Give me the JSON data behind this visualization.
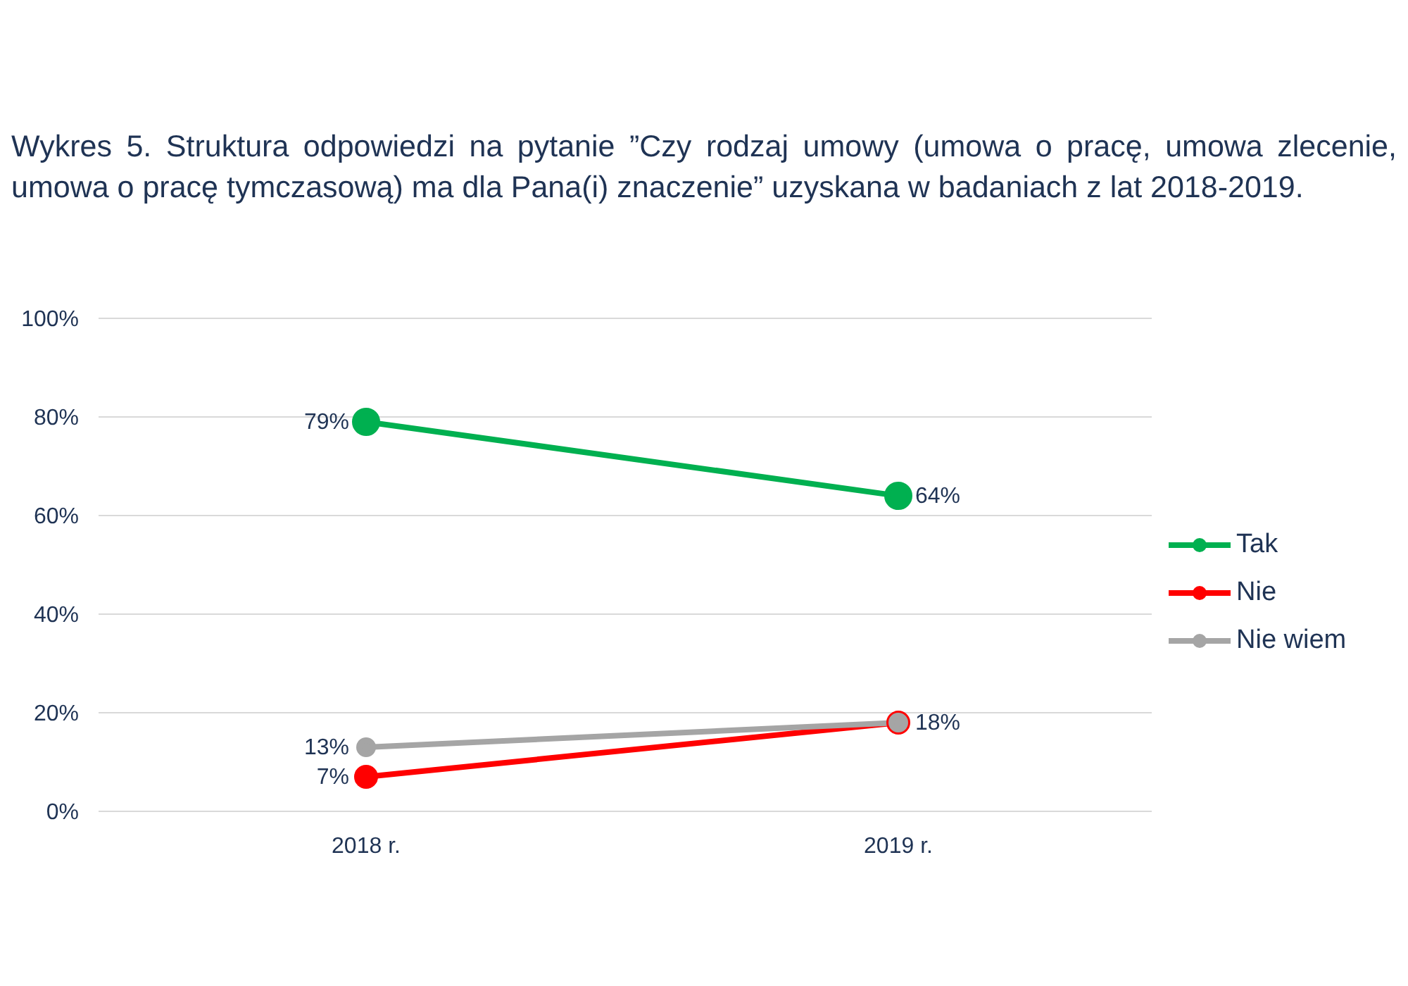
{
  "chart_data": {
    "type": "line",
    "title": "Wykres 5. Struktura odpowiedzi na pytanie ”Czy rodzaj umowy (umowa o pracę, umowa zlecenie, umowa o pracę tymczasową) ma dla Pana(i) znaczenie” uzyskana w badaniach z lat 2018-2019.",
    "categories": [
      "2018 r.",
      "2019 r."
    ],
    "series": [
      {
        "name": "Tak",
        "color": "#00b050",
        "values": [
          79,
          64
        ],
        "value_labels": [
          "79%",
          "64%"
        ]
      },
      {
        "name": "Nie",
        "color": "#ff0000",
        "values": [
          7,
          18
        ],
        "value_labels": [
          "7%",
          null
        ]
      },
      {
        "name": "Nie wiem",
        "color": "#a5a5a5",
        "values": [
          13,
          18
        ],
        "value_labels": [
          "13%",
          "18%"
        ]
      }
    ],
    "ylim": [
      0,
      100
    ],
    "yticks": [
      {
        "value": 0,
        "label": "0%"
      },
      {
        "value": 20,
        "label": "20%"
      },
      {
        "value": 40,
        "label": "40%"
      },
      {
        "value": 60,
        "label": "60%"
      },
      {
        "value": 80,
        "label": "80%"
      },
      {
        "value": 100,
        "label": "100%"
      }
    ],
    "grid": "y",
    "legend": "right",
    "marker": "circle",
    "line_style": "solid"
  }
}
